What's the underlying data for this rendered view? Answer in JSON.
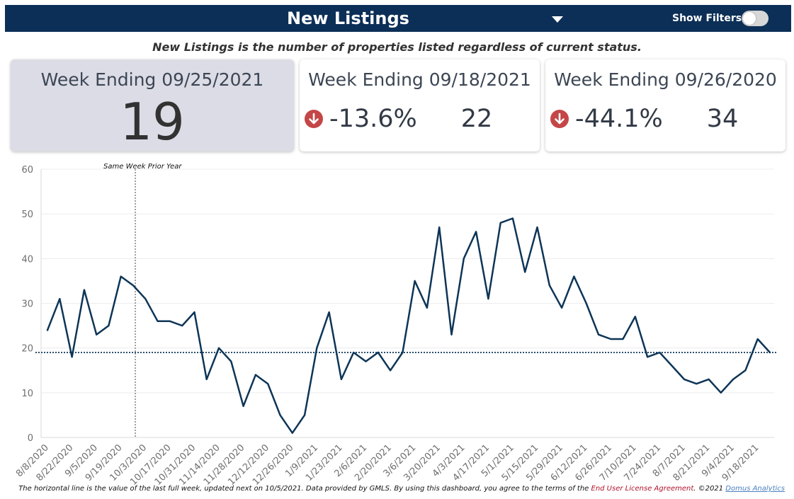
{
  "header": {
    "title": "New Listings",
    "filters_label": "Show Filters:",
    "filters_on": false
  },
  "subtitle": "New Listings is the number of properties listed regardless of current status.",
  "kpis": {
    "current": {
      "heading": "Week Ending 09/25/2021",
      "value": "19"
    },
    "prev_week": {
      "heading": "Week Ending 09/18/2021",
      "change": "-13.6%",
      "value": "22"
    },
    "prev_year": {
      "heading": "Week Ending 09/26/2020",
      "change": "-44.1%",
      "value": "34"
    }
  },
  "colors": {
    "header_bg": "#0c2f57",
    "line": "#0d3557",
    "down": "#c44646",
    "current_card_bg": "#dcdce6"
  },
  "chart_data": {
    "type": "line",
    "x": [
      "8/8/2020",
      "8/15/2020",
      "8/22/2020",
      "8/29/2020",
      "9/5/2020",
      "9/12/2020",
      "9/19/2020",
      "9/26/2020",
      "10/3/2020",
      "10/10/2020",
      "10/17/2020",
      "10/24/2020",
      "10/31/2020",
      "11/7/2020",
      "11/14/2020",
      "11/21/2020",
      "11/28/2020",
      "12/5/2020",
      "12/12/2020",
      "12/19/2020",
      "12/26/2020",
      "1/2/2021",
      "1/9/2021",
      "1/16/2021",
      "1/23/2021",
      "1/30/2021",
      "2/6/2021",
      "2/13/2021",
      "2/20/2021",
      "2/27/2021",
      "3/6/2021",
      "3/13/2021",
      "3/20/2021",
      "3/27/2021",
      "4/3/2021",
      "4/10/2021",
      "4/17/2021",
      "4/24/2021",
      "5/1/2021",
      "5/8/2021",
      "5/15/2021",
      "5/22/2021",
      "5/29/2021",
      "6/5/2021",
      "6/12/2021",
      "6/19/2021",
      "6/26/2021",
      "7/3/2021",
      "7/10/2021",
      "7/17/2021",
      "7/24/2021",
      "7/31/2021",
      "8/7/2021",
      "8/14/2021",
      "8/21/2021",
      "8/28/2021",
      "9/4/2021",
      "9/11/2021",
      "9/18/2021",
      "9/25/2021"
    ],
    "values": [
      24,
      31,
      18,
      33,
      23,
      25,
      36,
      34,
      31,
      26,
      26,
      25,
      28,
      13,
      20,
      17,
      7,
      14,
      12,
      5,
      1,
      5,
      20,
      28,
      13,
      19,
      17,
      19,
      15,
      19,
      35,
      29,
      47,
      23,
      40,
      46,
      31,
      48,
      49,
      37,
      47,
      34,
      29,
      36,
      30,
      23,
      22,
      22,
      27,
      18,
      19,
      16,
      13,
      12,
      13,
      10,
      13,
      15,
      22,
      19
    ],
    "xtick_labels": [
      "8/8/2020",
      "8/22/2020",
      "9/5/2020",
      "9/19/2020",
      "10/3/2020",
      "10/17/2020",
      "10/31/2020",
      "11/14/2020",
      "11/28/2020",
      "12/12/2020",
      "12/26/2020",
      "1/9/2021",
      "1/23/2021",
      "2/6/2021",
      "2/20/2021",
      "3/6/2021",
      "3/20/2021",
      "4/3/2021",
      "4/17/2021",
      "5/1/2021",
      "5/15/2021",
      "5/29/2021",
      "6/12/2021",
      "6/26/2021",
      "7/10/2021",
      "7/24/2021",
      "8/7/2021",
      "8/21/2021",
      "9/4/2021",
      "9/18/2021"
    ],
    "yticks": [
      0,
      10,
      20,
      30,
      40,
      50,
      60
    ],
    "ylim": [
      0,
      60
    ],
    "reference_line": {
      "value": 19
    },
    "annotation": {
      "text": "Same Week Prior Year",
      "x": "9/26/2020"
    },
    "grid": true
  },
  "footer": {
    "text": "The horizontal line is the value of the last full week, updated next on 10/5/2021.  Data provided by GMLS. By using this dashboard, you agree to the terms of the ",
    "eula": "End User License Agreement",
    "mid": ".  ©2021 ",
    "brand": "Domus Analytics"
  }
}
